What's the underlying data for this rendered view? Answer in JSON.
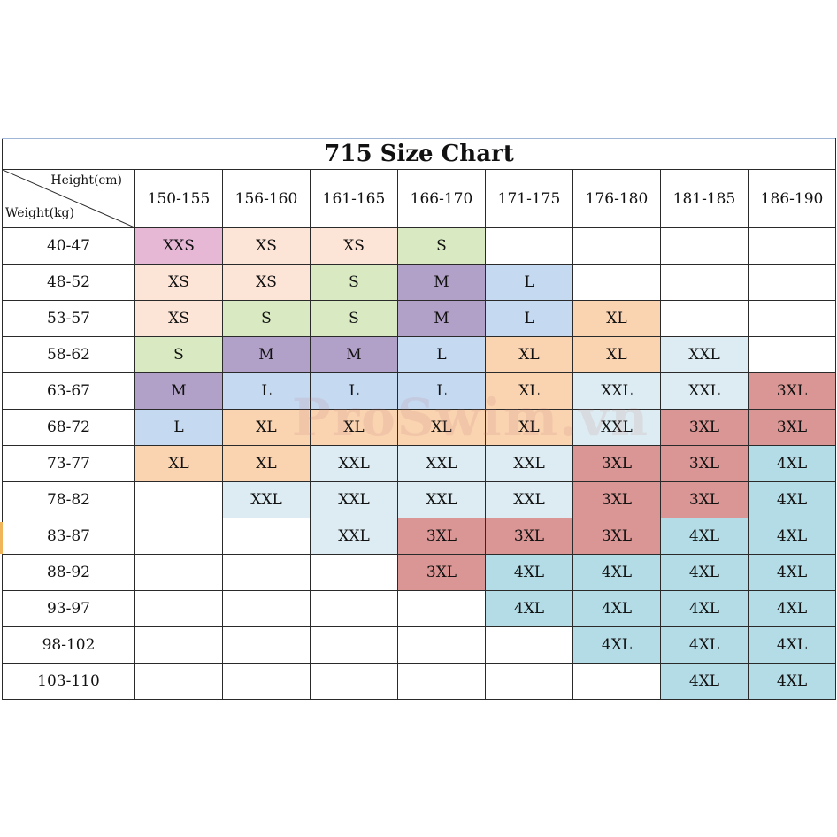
{
  "title": "715 Size Chart",
  "corner": {
    "height_label": "Height(cm)",
    "weight_label": "Weight(kg)"
  },
  "heights": [
    "150-155",
    "156-160",
    "161-165",
    "166-170",
    "171-175",
    "176-180",
    "181-185",
    "186-190"
  ],
  "size_colors": {
    "XXS": "#e6b8d6",
    "XS": "#fce4d6",
    "S": "#d9eac2",
    "M": "#b1a0c7",
    "L": "#c5d9f1",
    "XL": "#fad3b0",
    "XXL": "#dcecf2",
    "3XL": "#da9694",
    "4XL": "#b4dce6"
  },
  "rows": [
    {
      "weight": "40-47",
      "sizes": [
        "XXS",
        "XS",
        "XS",
        "S",
        "",
        "",
        "",
        ""
      ]
    },
    {
      "weight": "48-52",
      "sizes": [
        "XS",
        "XS",
        "S",
        "M",
        "L",
        "",
        "",
        ""
      ]
    },
    {
      "weight": "53-57",
      "sizes": [
        "XS",
        "S",
        "S",
        "M",
        "L",
        "XL",
        "",
        ""
      ]
    },
    {
      "weight": "58-62",
      "sizes": [
        "S",
        "M",
        "M",
        "L",
        "XL",
        "XL",
        "XXL",
        ""
      ]
    },
    {
      "weight": "63-67",
      "sizes": [
        "M",
        "L",
        "L",
        "L",
        "XL",
        "XXL",
        "XXL",
        "3XL"
      ]
    },
    {
      "weight": "68-72",
      "sizes": [
        "L",
        "XL",
        "XL",
        "XL",
        "XL",
        "XXL",
        "3XL",
        "3XL"
      ]
    },
    {
      "weight": "73-77",
      "sizes": [
        "XL",
        "XL",
        "XXL",
        "XXL",
        "XXL",
        "3XL",
        "3XL",
        "4XL"
      ]
    },
    {
      "weight": "78-82",
      "sizes": [
        "",
        "XXL",
        "XXL",
        "XXL",
        "XXL",
        "3XL",
        "3XL",
        "4XL"
      ]
    },
    {
      "weight": "83-87",
      "sizes": [
        "",
        "",
        "XXL",
        "3XL",
        "3XL",
        "3XL",
        "4XL",
        "4XL"
      ]
    },
    {
      "weight": "88-92",
      "sizes": [
        "",
        "",
        "",
        "3XL",
        "4XL",
        "4XL",
        "4XL",
        "4XL"
      ]
    },
    {
      "weight": "93-97",
      "sizes": [
        "",
        "",
        "",
        "",
        "4XL",
        "4XL",
        "4XL",
        "4XL"
      ]
    },
    {
      "weight": "98-102",
      "sizes": [
        "",
        "",
        "",
        "",
        "",
        "4XL",
        "4XL",
        "4XL"
      ]
    },
    {
      "weight": "103-110",
      "sizes": [
        "",
        "",
        "",
        "",
        "",
        "",
        "4XL",
        "4XL"
      ]
    }
  ],
  "watermark": "ProSwim.vn"
}
